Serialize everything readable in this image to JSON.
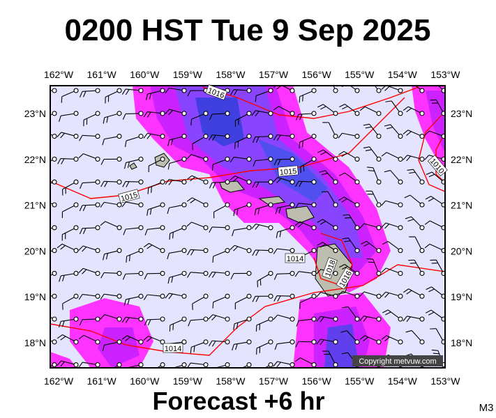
{
  "header": {
    "title": "0200 HST Tue 9 Sep 2025"
  },
  "footer": {
    "subtitle": "Forecast +6 hr",
    "code": "M3"
  },
  "map": {
    "copyright": "Copyright metvuw.com",
    "lon_labels": [
      "162°W",
      "161°W",
      "160°W",
      "159°W",
      "158°W",
      "157°W",
      "156°W",
      "155°W",
      "154°W",
      "153°W"
    ],
    "lat_labels": [
      "23°N",
      "22°N",
      "21°N",
      "20°N",
      "19°N",
      "18°N"
    ],
    "isobar_labels": [
      "1016",
      "1015",
      "1015",
      "1014",
      "1014",
      "1010",
      "1018",
      "1016"
    ]
  }
}
